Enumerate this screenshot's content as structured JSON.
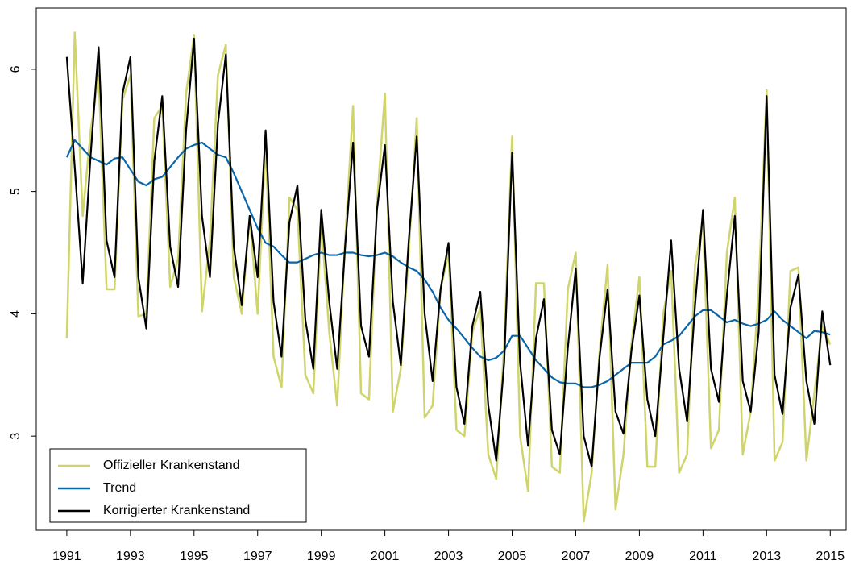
{
  "chart_data": {
    "type": "line",
    "x": [
      1991,
      1991.25,
      1991.5,
      1991.75,
      1992,
      1992.25,
      1992.5,
      1992.75,
      1993,
      1993.25,
      1993.5,
      1993.75,
      1994,
      1994.25,
      1994.5,
      1994.75,
      1995,
      1995.25,
      1995.5,
      1995.75,
      1996,
      1996.25,
      1996.5,
      1996.75,
      1997,
      1997.25,
      1997.5,
      1997.75,
      1998,
      1998.25,
      1998.5,
      1998.75,
      1999,
      1999.25,
      1999.5,
      1999.75,
      2000,
      2000.25,
      2000.5,
      2000.75,
      2001,
      2001.25,
      2001.5,
      2001.75,
      2002,
      2002.25,
      2002.5,
      2002.75,
      2003,
      2003.25,
      2003.5,
      2003.75,
      2004,
      2004.25,
      2004.5,
      2004.75,
      2005,
      2005.25,
      2005.5,
      2005.75,
      2006,
      2006.25,
      2006.5,
      2006.75,
      2007,
      2007.25,
      2007.5,
      2007.75,
      2008,
      2008.25,
      2008.5,
      2008.75,
      2009,
      2009.25,
      2009.5,
      2009.75,
      2010,
      2010.25,
      2010.5,
      2010.75,
      2011,
      2011.25,
      2011.5,
      2011.75,
      2012,
      2012.25,
      2012.5,
      2012.75,
      2013,
      2013.25,
      2013.5,
      2013.75,
      2014,
      2014.25,
      2014.5,
      2014.75,
      2015
    ],
    "series": [
      {
        "name": "Offizieller Krankenstand",
        "color": "#d0d46c",
        "values": [
          3.8,
          6.3,
          4.8,
          5.5,
          5.95,
          4.2,
          4.2,
          5.75,
          5.95,
          3.98,
          4.0,
          5.6,
          5.7,
          4.22,
          4.45,
          5.8,
          6.28,
          4.02,
          4.6,
          5.95,
          6.2,
          4.3,
          4.0,
          4.8,
          4.0,
          5.4,
          3.65,
          3.4,
          4.95,
          4.85,
          3.5,
          3.35,
          4.75,
          3.85,
          3.25,
          4.6,
          5.7,
          3.35,
          3.3,
          4.9,
          5.8,
          3.2,
          3.55,
          4.5,
          5.6,
          3.15,
          3.25,
          4.2,
          4.5,
          3.05,
          3.0,
          3.85,
          4.05,
          2.85,
          2.65,
          3.75,
          5.45,
          3.0,
          2.55,
          4.25,
          4.25,
          2.75,
          2.7,
          4.2,
          4.5,
          2.3,
          2.7,
          3.7,
          4.4,
          2.4,
          2.85,
          3.75,
          4.3,
          2.75,
          2.75,
          4.0,
          4.35,
          2.7,
          2.85,
          4.4,
          4.75,
          2.9,
          3.05,
          4.5,
          4.95,
          2.85,
          3.2,
          4.2,
          5.83,
          2.8,
          2.95,
          4.35,
          4.38,
          2.8,
          3.35,
          3.9,
          3.75
        ]
      },
      {
        "name": "Trend",
        "color": "#0b66a8",
        "values": [
          5.28,
          5.42,
          5.35,
          5.28,
          5.25,
          5.22,
          5.27,
          5.28,
          5.18,
          5.08,
          5.05,
          5.1,
          5.12,
          5.2,
          5.28,
          5.35,
          5.38,
          5.4,
          5.35,
          5.3,
          5.28,
          5.15,
          5.0,
          4.85,
          4.7,
          4.58,
          4.55,
          4.48,
          4.42,
          4.42,
          4.45,
          4.48,
          4.5,
          4.48,
          4.48,
          4.5,
          4.5,
          4.48,
          4.47,
          4.48,
          4.5,
          4.47,
          4.42,
          4.38,
          4.35,
          4.28,
          4.18,
          4.05,
          3.95,
          3.88,
          3.8,
          3.72,
          3.65,
          3.62,
          3.64,
          3.7,
          3.82,
          3.82,
          3.72,
          3.62,
          3.55,
          3.48,
          3.44,
          3.43,
          3.43,
          3.4,
          3.4,
          3.42,
          3.45,
          3.5,
          3.55,
          3.6,
          3.6,
          3.6,
          3.65,
          3.75,
          3.78,
          3.82,
          3.9,
          3.98,
          4.03,
          4.03,
          3.98,
          3.93,
          3.95,
          3.92,
          3.9,
          3.92,
          3.95,
          4.02,
          3.95,
          3.9,
          3.85,
          3.8,
          3.86,
          3.85,
          3.83
        ]
      },
      {
        "name": "Korrigierter Krankenstand",
        "color": "#000000",
        "values": [
          6.1,
          5.2,
          4.25,
          5.3,
          6.18,
          4.6,
          4.3,
          5.8,
          6.1,
          4.3,
          3.88,
          5.25,
          5.78,
          4.55,
          4.22,
          5.5,
          6.25,
          4.8,
          4.3,
          5.55,
          6.12,
          4.55,
          4.07,
          4.8,
          4.3,
          5.5,
          4.1,
          3.65,
          4.75,
          5.05,
          3.95,
          3.55,
          4.85,
          4.1,
          3.55,
          4.55,
          5.4,
          3.9,
          3.65,
          4.85,
          5.38,
          4.1,
          3.58,
          4.6,
          5.45,
          4.0,
          3.45,
          4.2,
          4.58,
          3.4,
          3.1,
          3.9,
          4.18,
          3.25,
          2.8,
          3.6,
          5.32,
          3.6,
          2.92,
          3.8,
          4.12,
          3.05,
          2.85,
          3.72,
          4.37,
          3.0,
          2.75,
          3.65,
          4.2,
          3.2,
          3.02,
          3.7,
          4.15,
          3.3,
          3.0,
          3.8,
          4.6,
          3.55,
          3.12,
          4.07,
          4.85,
          3.55,
          3.28,
          4.15,
          4.8,
          3.45,
          3.2,
          3.85,
          5.78,
          3.5,
          3.18,
          4.05,
          4.32,
          3.45,
          3.1,
          4.02,
          3.58
        ]
      }
    ],
    "xlim": [
      1990.04,
      2015.5
    ],
    "ylim": [
      2.23,
      6.5
    ],
    "xticks": [
      1991,
      1993,
      1995,
      1997,
      1999,
      2001,
      2003,
      2005,
      2007,
      2009,
      2011,
      2013,
      2015
    ],
    "yticks": [
      3,
      4,
      5,
      6
    ],
    "legend": "bottom-left"
  }
}
